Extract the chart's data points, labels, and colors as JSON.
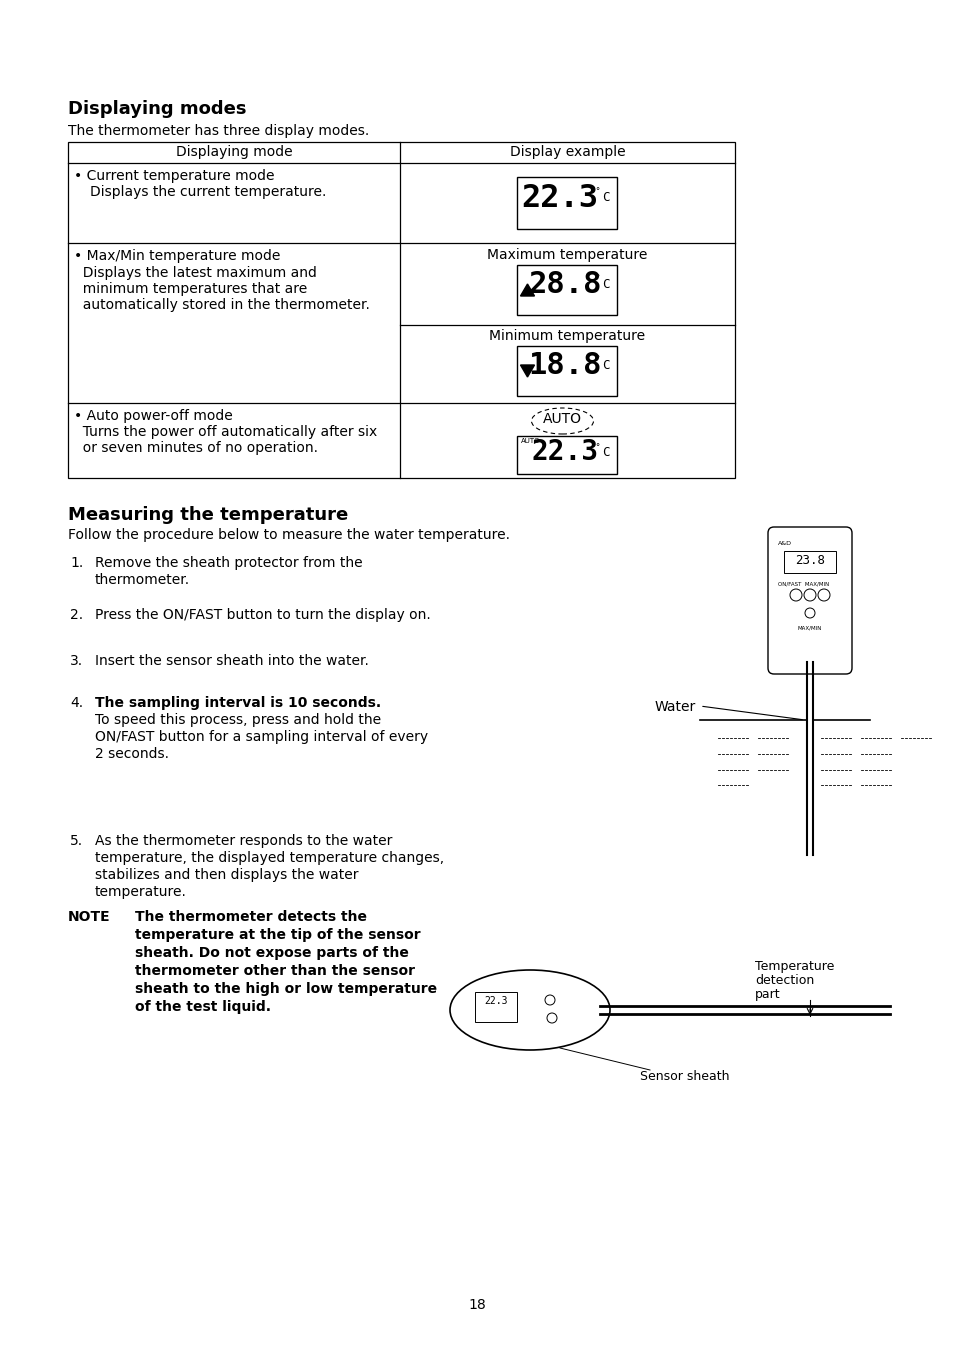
{
  "title_displaying": "Displaying modes",
  "subtitle_displaying": "The thermometer has three display modes.",
  "table_headers": [
    "Displaying mode",
    "Display example"
  ],
  "row1_left_title": "• Current temperature mode",
  "row1_left_body": "  Displays the current temperature.",
  "row2_left_title": "• Max/Min temperature mode",
  "row2_left_body_lines": [
    "  Displays the latest maximum and",
    "  minimum temperatures that are",
    "  automatically stored in the thermometer."
  ],
  "row3_left_title": "• Auto power-off mode",
  "row3_left_body_lines": [
    "  Turns the power off automatically after six",
    "  or seven minutes of no operation."
  ],
  "max_temp_label": "Maximum temperature",
  "min_temp_label": "Minimum temperature",
  "title_measuring": "Measuring the temperature",
  "subtitle_measuring": "Follow the procedure below to measure the water temperature.",
  "step1_lines": [
    "Remove the sheath protector from the",
    "thermometer."
  ],
  "step2_lines": [
    "Press the ON/FAST button to turn the display on."
  ],
  "step3_lines": [
    "Insert the sensor sheath into the water."
  ],
  "step4_lines": [
    "The sampling interval is 10 seconds.",
    "To speed this process, press and hold the",
    "ON/FAST button for a sampling interval of every",
    "2 seconds."
  ],
  "step5_lines": [
    "As the thermometer responds to the water",
    "temperature, the displayed temperature changes,",
    "stabilizes and then displays the water",
    "temperature."
  ],
  "water_label": "Water",
  "note_label": "NOTE",
  "note_text_lines": [
    "The thermometer detects the",
    "temperature at the tip of the sensor",
    "sheath. Do not expose parts of the",
    "thermometer other than the sensor",
    "sheath to the high or low temperature",
    "of the test liquid."
  ],
  "temp_detection_label_lines": [
    "Temperature",
    "detection",
    "part"
  ],
  "sensor_sheath_label": "Sensor sheath",
  "page_number": "18",
  "bg_color": "#ffffff",
  "text_color": "#000000"
}
